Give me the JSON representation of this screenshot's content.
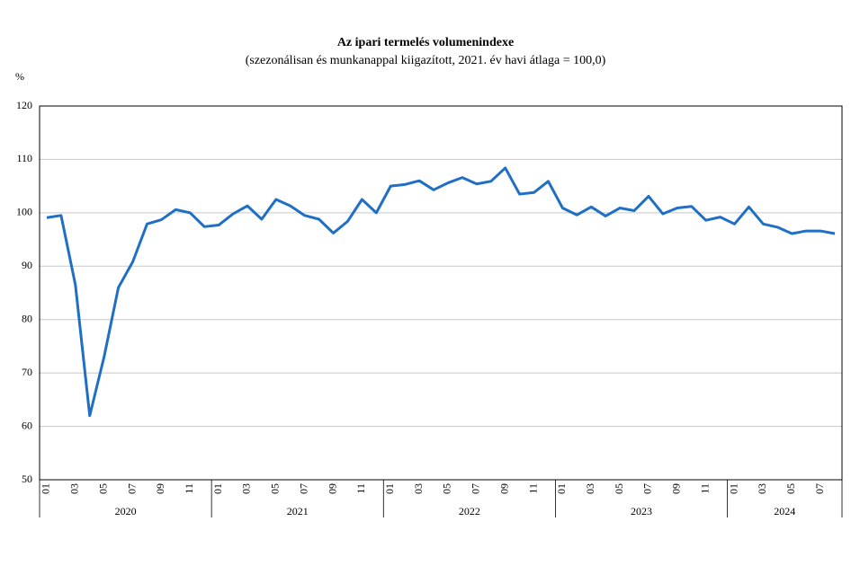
{
  "chart_data": {
    "type": "line",
    "title": "Az ipari termelés volumenindexe",
    "subtitle": "(szezonálisan és munkanappal kiigazított, 2021. év havi átlaga = 100,0)",
    "y_label": "%",
    "categories": [
      "01",
      null,
      "03",
      null,
      "05",
      null,
      "07",
      null,
      "09",
      null,
      "11",
      null,
      "01",
      null,
      "03",
      null,
      "05",
      null,
      "07",
      null,
      "09",
      null,
      "11",
      null,
      "01",
      null,
      "03",
      null,
      "05",
      null,
      "07",
      null,
      "09",
      null,
      "11",
      null,
      "01",
      null,
      "03",
      null,
      "05",
      null,
      "07",
      null,
      "09",
      null,
      "11",
      null,
      "01",
      null,
      "03",
      null,
      "05",
      null,
      "07",
      null
    ],
    "years": [
      "2020",
      "2021",
      "2022",
      "2023",
      "2024"
    ],
    "series": [
      {
        "color": "#1f6fc5",
        "values": [
          99.1,
          99.5,
          86.5,
          62,
          73,
          86,
          90.8,
          97.9,
          98.7,
          100.6,
          100,
          97.4,
          97.7,
          99.8,
          101.3,
          98.8,
          102.5,
          101.3,
          99.5,
          98.8,
          96.2,
          98.4,
          102.5,
          100,
          105,
          105.3,
          106,
          104.3,
          105.6,
          106.6,
          105.4,
          105.9,
          108.4,
          103.5,
          103.8,
          105.9,
          100.9,
          99.6,
          101.1,
          99.4,
          100.9,
          100.4,
          103.1,
          99.8,
          100.9,
          101.2,
          98.6,
          99.2,
          97.9,
          101.1,
          97.9,
          97.3,
          96.1,
          96.6,
          96.6,
          96.1
        ]
      }
    ],
    "ylim": [
      50,
      120
    ],
    "yticks": [
      50,
      60,
      70,
      80,
      90,
      100,
      110,
      120
    ],
    "grid": true
  }
}
